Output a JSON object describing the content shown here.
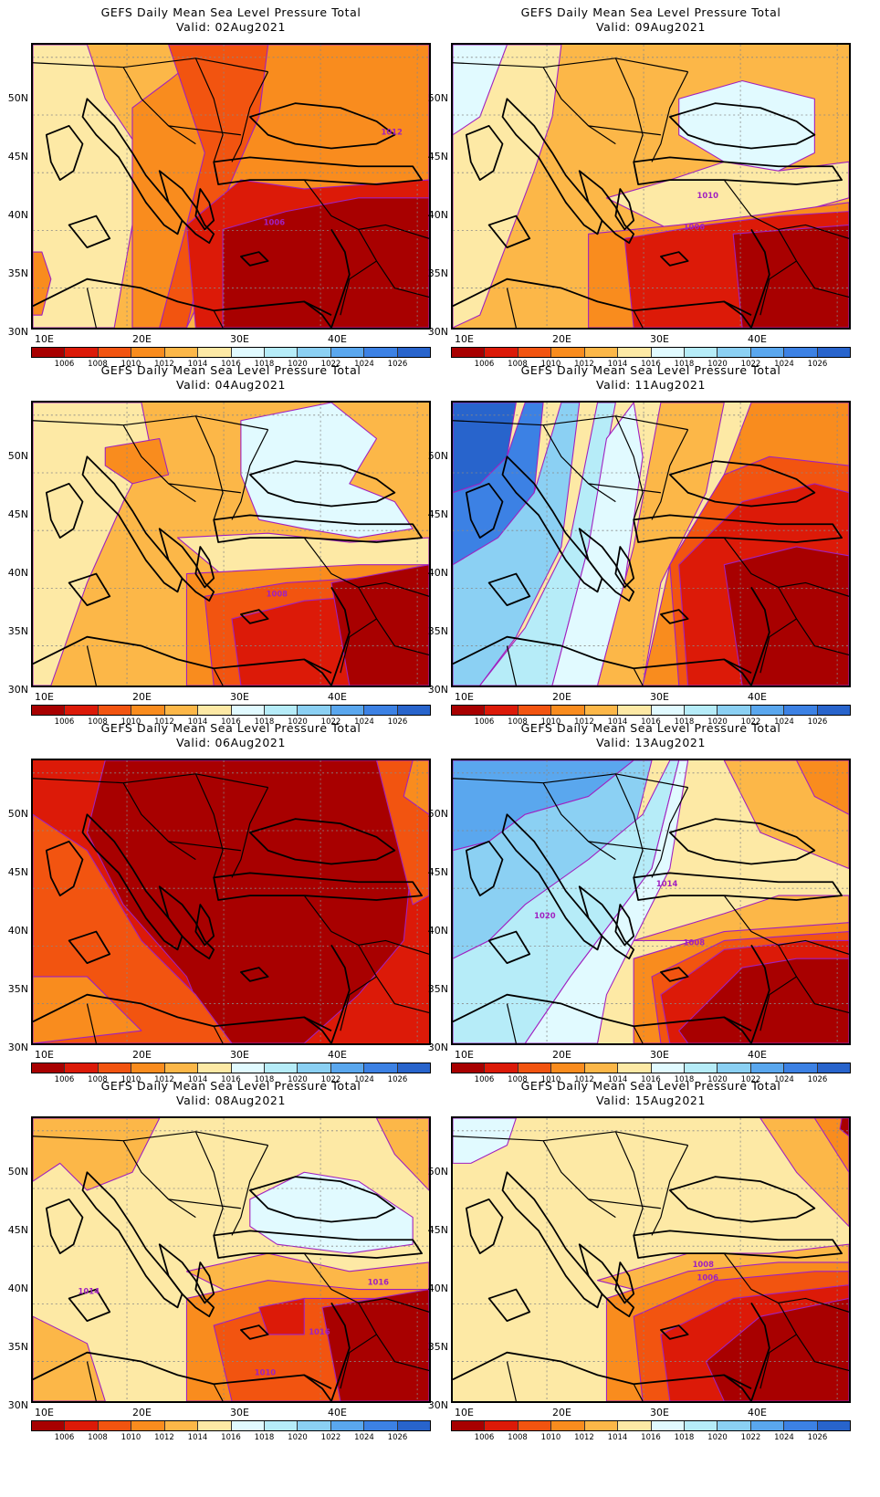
{
  "title": "GEFS Daily Mean Sea Level Pressure Total",
  "valid_prefix": "Valid:",
  "lat_labels": [
    "50N",
    "45N",
    "40N",
    "35N",
    "30N"
  ],
  "lon_labels": [
    "10E",
    "20E",
    "30E",
    "40E"
  ],
  "colorbar_labels": [
    "1006",
    "1008",
    "1010",
    "1012",
    "1014",
    "1016",
    "1018",
    "1020",
    "1022",
    "1024",
    "1026"
  ],
  "colorbar_colors": [
    "#a80000",
    "#dc1a08",
    "#f25410",
    "#f98c1e",
    "#fcb748",
    "#fde9a5",
    "#e1faff",
    "#b6ecf8",
    "#8bd0f3",
    "#5aa7ee",
    "#3c81e4",
    "#2864cc"
  ],
  "panels": [
    {
      "valid": "02Aug2021",
      "contour_labels": [
        "1012",
        "1006"
      ]
    },
    {
      "valid": "09Aug2021",
      "contour_labels": [
        "1010",
        "1006"
      ]
    },
    {
      "valid": "04Aug2021",
      "contour_labels": [
        "1008"
      ]
    },
    {
      "valid": "11Aug2021",
      "contour_labels": []
    },
    {
      "valid": "06Aug2021",
      "contour_labels": []
    },
    {
      "valid": "13Aug2021",
      "contour_labels": [
        "1020",
        "1014",
        "1008"
      ]
    },
    {
      "valid": "08Aug2021",
      "contour_labels": [
        "1014",
        "1016",
        "1016",
        "1010"
      ]
    },
    {
      "valid": "15Aug2021",
      "contour_labels": [
        "1008",
        "1006"
      ]
    }
  ]
}
